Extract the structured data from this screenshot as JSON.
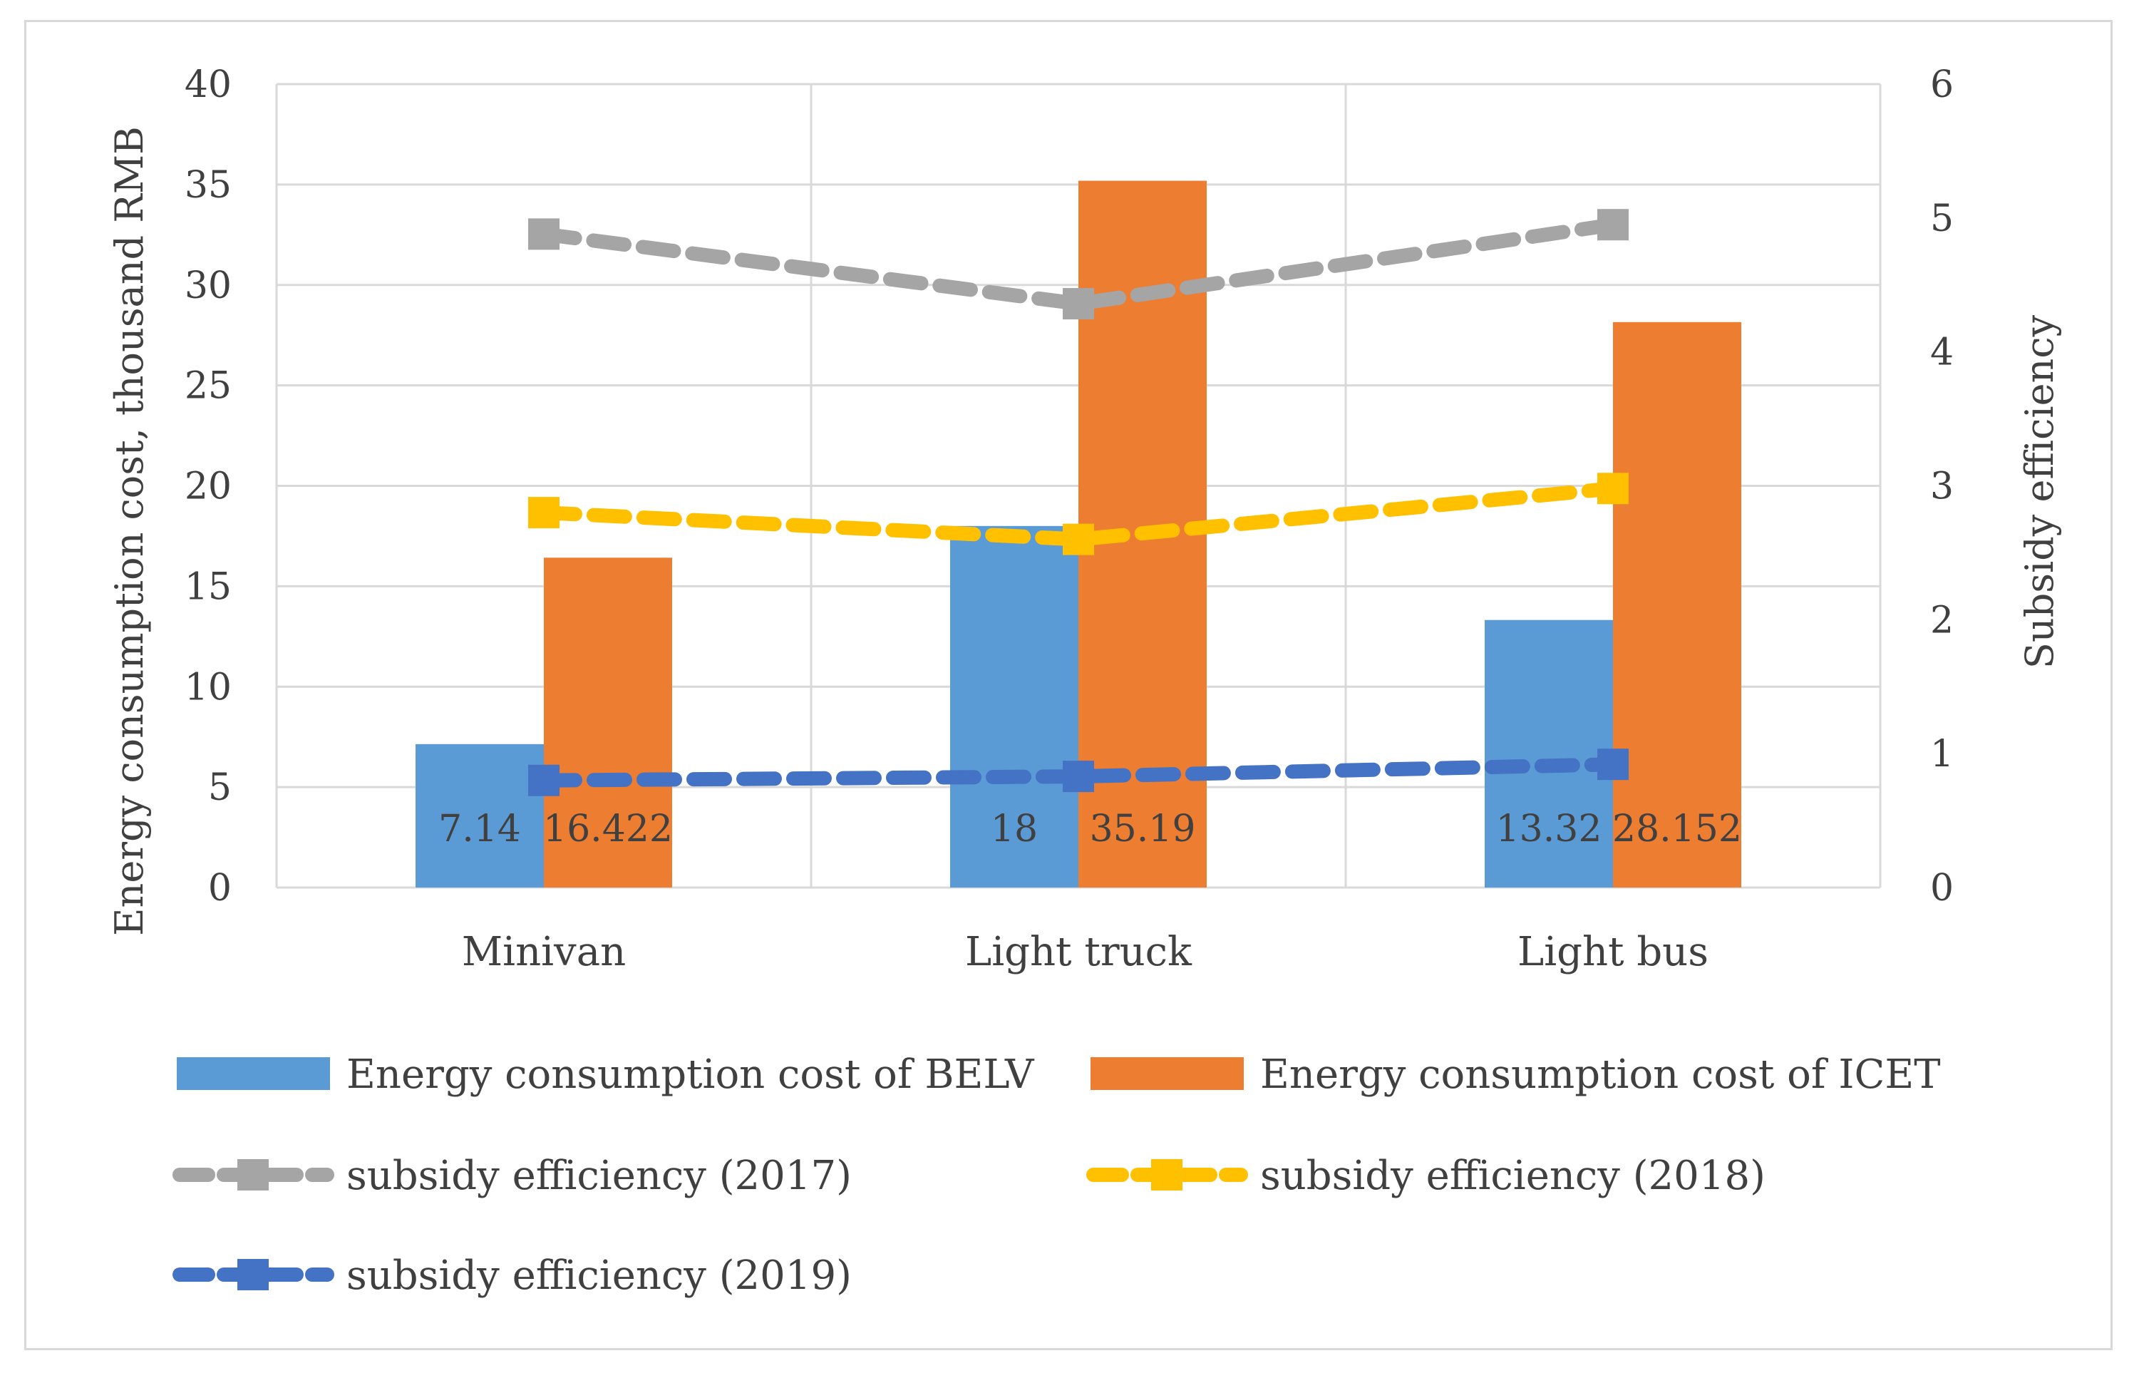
{
  "chart_data": {
    "type": "bar",
    "categories": [
      "Minivan",
      "Light truck",
      "Light bus"
    ],
    "bar_series": [
      {
        "name": "Energy consumption cost of BELV",
        "values": [
          7.14,
          18,
          13.32
        ],
        "labels": [
          "7.14",
          "18",
          "13.32"
        ],
        "color": "#5b9bd5"
      },
      {
        "name": "Energy consumption cost of ICET",
        "values": [
          16.422,
          35.19,
          28.152
        ],
        "labels": [
          "16.422",
          "35.19",
          "28.152"
        ],
        "color": "#ed7d31"
      }
    ],
    "line_series": [
      {
        "name": "subsidy efficiency (2017)",
        "values": [
          4.88,
          4.36,
          4.95
        ],
        "color": "#a5a5a5"
      },
      {
        "name": "subsidy efficiency (2018)",
        "values": [
          2.8,
          2.6,
          2.98
        ],
        "color": "#ffc000"
      },
      {
        "name": "subsidy efficiency (2019)",
        "values": [
          0.8,
          0.83,
          0.92
        ],
        "color": "#4472c4"
      }
    ],
    "y_left": {
      "label": "Energy consumption cost, thousand RMB",
      "min": 0,
      "max": 40,
      "ticks": [
        "0",
        "5",
        "10",
        "15",
        "20",
        "25",
        "30",
        "35",
        "40"
      ]
    },
    "y_right": {
      "label": "Subsidy efficiency",
      "min": 0,
      "max": 6,
      "ticks": [
        "0",
        "1",
        "2",
        "3",
        "4",
        "5",
        "6"
      ]
    },
    "grid": true,
    "legend_position": "bottom"
  }
}
